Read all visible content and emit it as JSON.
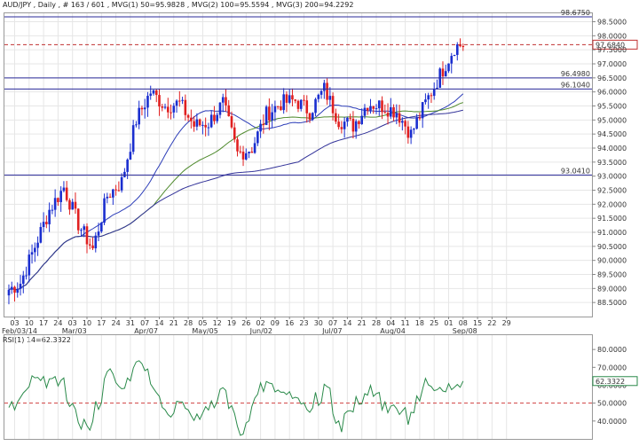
{
  "chart_data": {
    "type": "candlestick",
    "header": "AUD/JPY , Daily , # 163 / 601 , MVG(1) 50=95.9828 , MVG(2) 100=95.5594 , MVG(3) 200=94.2292",
    "price_panel": {
      "ylim": [
        88.0,
        98.8
      ],
      "y_ticks": [
        88.5,
        89.0,
        89.5,
        90.0,
        90.5,
        91.0,
        91.5,
        92.0,
        92.5,
        93.0,
        93.5,
        94.0,
        94.5,
        95.0,
        95.5,
        96.0,
        96.5,
        97.0,
        97.5,
        98.0,
        98.5
      ],
      "y_tick_labels": [
        "88.5000",
        "89.0000",
        "89.5000",
        "90.0000",
        "90.5000",
        "91.0000",
        "91.5000",
        "92.0000",
        "92.5000",
        "93.0000",
        "93.5000",
        "94.0000",
        "94.5000",
        "95.0000",
        "95.5000",
        "96.0000",
        "96.5000",
        "97.0000",
        "97.5000",
        "98.0000",
        "98.5000"
      ],
      "horizontal_lines": [
        {
          "label": "98.6750",
          "value": 98.675
        },
        {
          "label": "96.4980",
          "value": 96.498
        },
        {
          "label": "96.1040",
          "value": 96.104
        },
        {
          "label": "93.0410",
          "value": 93.041
        }
      ],
      "current_price": {
        "label": "97.6840",
        "value": 97.684
      }
    },
    "x_axis": {
      "tick_labels": [
        "03",
        "10",
        "17",
        "24",
        "03",
        "10",
        "17",
        "24",
        "31",
        "07",
        "14",
        "21",
        "28",
        "05",
        "12",
        "19",
        "26",
        "02",
        "09",
        "16",
        "23",
        "30",
        "07",
        "14",
        "21",
        "28",
        "04",
        "11",
        "18",
        "25",
        "01",
        "08",
        "15",
        "22",
        "29"
      ],
      "month_labels": [
        {
          "label": "Feb/03/14",
          "at": 0
        },
        {
          "label": "Mar/03",
          "at": 4
        },
        {
          "label": "Apr/07",
          "at": 9
        },
        {
          "label": "May/05",
          "at": 13
        },
        {
          "label": "Jun/02",
          "at": 17
        },
        {
          "label": "Jul/07",
          "at": 22
        },
        {
          "label": "Aug/04",
          "at": 26
        },
        {
          "label": "Sep/08",
          "at": 31
        }
      ]
    },
    "weekly_closes": [
      89.2,
      90.5,
      91.8,
      92.6,
      91.3,
      90.4,
      92.3,
      92.8,
      95.0,
      96.0,
      95.5,
      95.6,
      94.8,
      94.9,
      95.6,
      93.8,
      94.0,
      95.2,
      95.6,
      95.7,
      95.3,
      96.1,
      95.0,
      94.8,
      95.6,
      95.5,
      95.3,
      94.5,
      95.6,
      96.6,
      97.6,
      97.7
    ],
    "moving_averages": [
      {
        "name": "MVG(1) 50",
        "value": 95.9828,
        "color": "#2c3db8"
      },
      {
        "name": "MVG(2) 100",
        "value": 95.5594,
        "color": "#4f8a2d"
      },
      {
        "name": "MVG(3) 200",
        "value": 94.2292,
        "color": "#333399"
      }
    ],
    "rsi_panel": {
      "header": "RSI(1) 14=62.3322",
      "value": 62.3322,
      "value_label": "62.3322",
      "ylim": [
        30,
        88
      ],
      "y_ticks": [
        40,
        50,
        60,
        70,
        80
      ],
      "y_tick_labels": [
        "40.0000",
        "50.0000",
        "60.0000",
        "70.0000",
        "80.0000"
      ],
      "reference_line": 50
    },
    "colors": {
      "up": "#1a2ecf",
      "down": "#e02020",
      "rsi": "#2a8a4a",
      "level": "#2a2a9a"
    }
  }
}
